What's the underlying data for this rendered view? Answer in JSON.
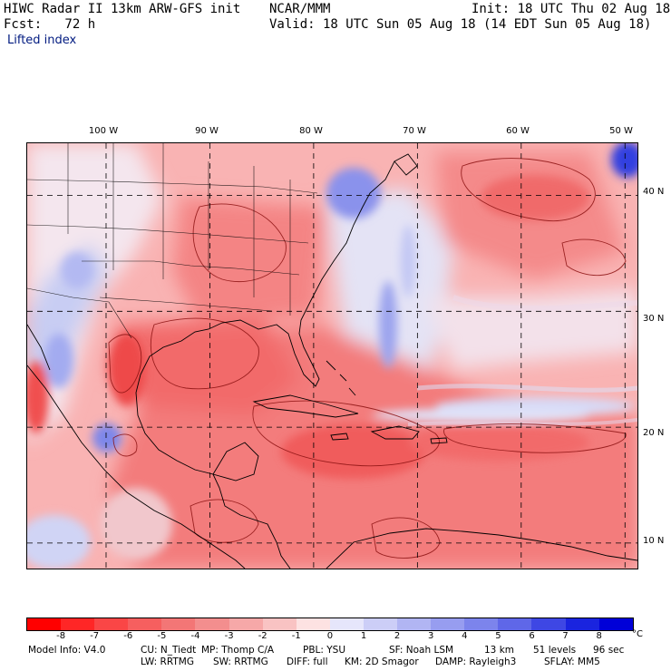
{
  "header": {
    "left_line1": "HIWC Radar II 13km ARW-GFS init",
    "center_line1": "NCAR/MMM",
    "right_line1": "Init: 18 UTC Thu 02 Aug 18",
    "left_line2": "Fcst:   72 h",
    "right_line2": "Valid: 18 UTC Sun 05 Aug 18 (14 EDT Sun 05 Aug 18)",
    "field_name": "Lifted index"
  },
  "map": {
    "lon_labels": [
      "100 W",
      "90 W",
      "80 W",
      "70 W",
      "60 W",
      "50 W"
    ],
    "lat_labels": [
      "40 N",
      "30 N",
      "20 N",
      "10 N"
    ],
    "lon_range": [
      -107.6,
      -48.8
    ],
    "lat_range": [
      7.8,
      44.5
    ],
    "grid_lons": [
      -100,
      -90,
      -80,
      -70,
      -60,
      -50
    ],
    "grid_lats": [
      40,
      30,
      20,
      10
    ],
    "field_colors": {
      "strong_neg": "#f25a5a",
      "neg": "#f47a7a",
      "mild_neg": "#f8a6a6",
      "weak_neg": "#fbc8c8",
      "neutral": "#fbeaea",
      "weak_pos": "#d9dcf5",
      "pos": "#9aa4ec",
      "strong_pos": "#5a6ae6",
      "contour": "#8b1010",
      "coast": "#000000"
    }
  },
  "colorbar": {
    "unit": "°C",
    "ticks": [
      "-8",
      "-7",
      "-6",
      "-5",
      "-4",
      "-3",
      "-2",
      "-1",
      "0",
      "1",
      "2",
      "3",
      "4",
      "5",
      "6",
      "7",
      "8"
    ],
    "colors": [
      "#ff0000",
      "#ff2626",
      "#fa4646",
      "#f65f5f",
      "#f37676",
      "#f38e8e",
      "#f6a8a8",
      "#f9c3c3",
      "#fde2e2",
      "#e6e6fb",
      "#cccef7",
      "#b1b5f3",
      "#979df0",
      "#7c84ec",
      "#5f67e8",
      "#3e47e4",
      "#1a24df",
      "#0000d8"
    ]
  },
  "footer": {
    "line1_left": "Model Info: V4.0",
    "line1_cu": "CU: N_Tiedt",
    "line1_mp": "MP: Thomp C/A",
    "line1_pbl": "PBL: YSU",
    "line1_sf": "SF: Noah LSM",
    "line1_res": "13 km",
    "line1_levels": "51 levels",
    "line1_dt": "96 sec",
    "line2_lw": "LW: RRTMG",
    "line2_sw": "SW: RRTMG",
    "line2_diff": "DIFF: full",
    "line2_km": "KM: 2D Smagor",
    "line2_damp": "DAMP: Rayleigh3",
    "line2_sflay": "SFLAY: MM5"
  }
}
